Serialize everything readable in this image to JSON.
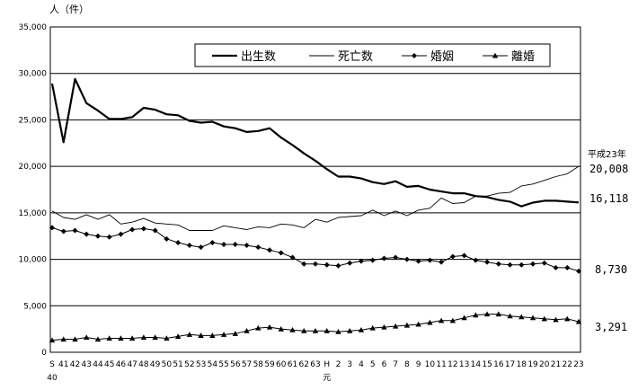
{
  "chart_data": {
    "type": "line",
    "y_unit_label": "人（件）",
    "ylim": [
      0,
      35000
    ],
    "yticks": [
      "0",
      "5,000",
      "10,000",
      "15,000",
      "20,000",
      "25,000",
      "30,000",
      "35,000"
    ],
    "grid": "horizontal",
    "legend_position": "top-right",
    "x": [
      "S40",
      "41",
      "42",
      "43",
      "44",
      "45",
      "46",
      "47",
      "48",
      "49",
      "50",
      "51",
      "52",
      "53",
      "54",
      "55",
      "56",
      "57",
      "58",
      "59",
      "60",
      "61",
      "62",
      "63",
      "H元",
      "2",
      "3",
      "4",
      "5",
      "6",
      "7",
      "8",
      "9",
      "10",
      "11",
      "12",
      "13",
      "14",
      "15",
      "16",
      "17",
      "18",
      "19",
      "20",
      "21",
      "22",
      "23"
    ],
    "x_tick_top": [
      "S",
      "41",
      "42",
      "43",
      "44",
      "45",
      "46",
      "47",
      "48",
      "49",
      "50",
      "51",
      "52",
      "53",
      "54",
      "55",
      "56",
      "57",
      "58",
      "59",
      "60",
      "61",
      "62",
      "63",
      "H",
      "2",
      "3",
      "4",
      "5",
      "6",
      "7",
      "8",
      "9",
      "10",
      "11",
      "12",
      "13",
      "14",
      "15",
      "16",
      "17",
      "18",
      "19",
      "20",
      "21",
      "22",
      "23"
    ],
    "x_tick_bottom": [
      "40",
      "",
      "",
      "",
      "",
      "",
      "",
      "",
      "",
      "",
      "",
      "",
      "",
      "",
      "",
      "",
      "",
      "",
      "",
      "",
      "",
      "",
      "",
      "",
      "元",
      "",
      "",
      "",
      "",
      "",
      "",
      "",
      "",
      "",
      "",
      "",
      "",
      "",
      "",
      "",
      "",
      "",
      "",
      "",
      "",
      "",
      ""
    ],
    "series": [
      {
        "name": "出生数",
        "style": "thick",
        "color": "#000000",
        "values": [
          28900,
          22600,
          29400,
          26800,
          26000,
          25100,
          25100,
          25300,
          26300,
          26100,
          25600,
          25500,
          24900,
          24700,
          24800,
          24300,
          24100,
          23700,
          23800,
          24100,
          23100,
          22300,
          21400,
          20600,
          19700,
          18900,
          18900,
          18700,
          18300,
          18100,
          18400,
          17800,
          17900,
          17500,
          17300,
          17100,
          17100,
          16800,
          16700,
          16400,
          16200,
          15700,
          16100,
          16300,
          16300,
          16200,
          16118
        ]
      },
      {
        "name": "死亡数",
        "style": "thin",
        "color": "#000000",
        "values": [
          15200,
          14500,
          14300,
          14800,
          14300,
          14800,
          13800,
          14000,
          14400,
          13900,
          13800,
          13700,
          13100,
          13100,
          13100,
          13600,
          13400,
          13200,
          13500,
          13400,
          13800,
          13700,
          13400,
          14300,
          14000,
          14500,
          14600,
          14700,
          15300,
          14700,
          15200,
          14700,
          15300,
          15500,
          16600,
          16000,
          16100,
          16800,
          16800,
          17100,
          17200,
          17900,
          18100,
          18500,
          18900,
          19200,
          20008
        ]
      },
      {
        "name": "婚姻",
        "style": "diamond",
        "color": "#000000",
        "values": [
          13400,
          13000,
          13100,
          12700,
          12500,
          12400,
          12700,
          13200,
          13300,
          13100,
          12200,
          11800,
          11500,
          11300,
          11800,
          11600,
          11600,
          11500,
          11300,
          11000,
          10700,
          10200,
          9500,
          9500,
          9400,
          9300,
          9600,
          9800,
          9900,
          10100,
          10200,
          10000,
          9800,
          9900,
          9700,
          10300,
          10400,
          9900,
          9700,
          9500,
          9400,
          9400,
          9500,
          9600,
          9100,
          9100,
          8730
        ]
      },
      {
        "name": "離婚",
        "style": "triangle",
        "color": "#000000",
        "values": [
          1300,
          1400,
          1400,
          1600,
          1400,
          1500,
          1500,
          1500,
          1600,
          1600,
          1500,
          1700,
          1900,
          1800,
          1800,
          1900,
          2000,
          2300,
          2600,
          2700,
          2500,
          2400,
          2300,
          2300,
          2300,
          2200,
          2300,
          2400,
          2600,
          2700,
          2800,
          2900,
          3000,
          3200,
          3400,
          3400,
          3700,
          4000,
          4100,
          4100,
          3900,
          3800,
          3700,
          3600,
          3500,
          3600,
          3291
        ]
      }
    ],
    "annotation": "平成23年",
    "end_labels": [
      "20,008",
      "16,118",
      "8,730",
      "3,291"
    ]
  }
}
